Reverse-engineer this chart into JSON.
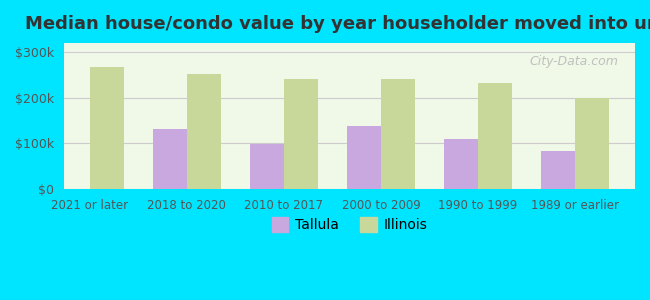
{
  "title": "Median house/condo value by year householder moved into unit",
  "categories": [
    "2021 or later",
    "2018 to 2020",
    "2010 to 2017",
    "2000 to 2009",
    "1990 to 1999",
    "1989 or earlier"
  ],
  "tallula_values": [
    null,
    132000,
    98000,
    138000,
    110000,
    83000
  ],
  "illinois_values": [
    268000,
    252000,
    242000,
    240000,
    232000,
    200000
  ],
  "tallula_color": "#c9a8e0",
  "illinois_color": "#c8d89a",
  "background_outer": "#00e5ff",
  "background_inner": "#f0f8e8",
  "ylim": [
    0,
    320000
  ],
  "yticks": [
    0,
    100000,
    200000,
    300000
  ],
  "ytick_labels": [
    "$0",
    "$100k",
    "$200k",
    "$300k"
  ],
  "bar_width": 0.35,
  "legend_labels": [
    "Tallula",
    "Illinois"
  ],
  "watermark": "City-Data.com"
}
